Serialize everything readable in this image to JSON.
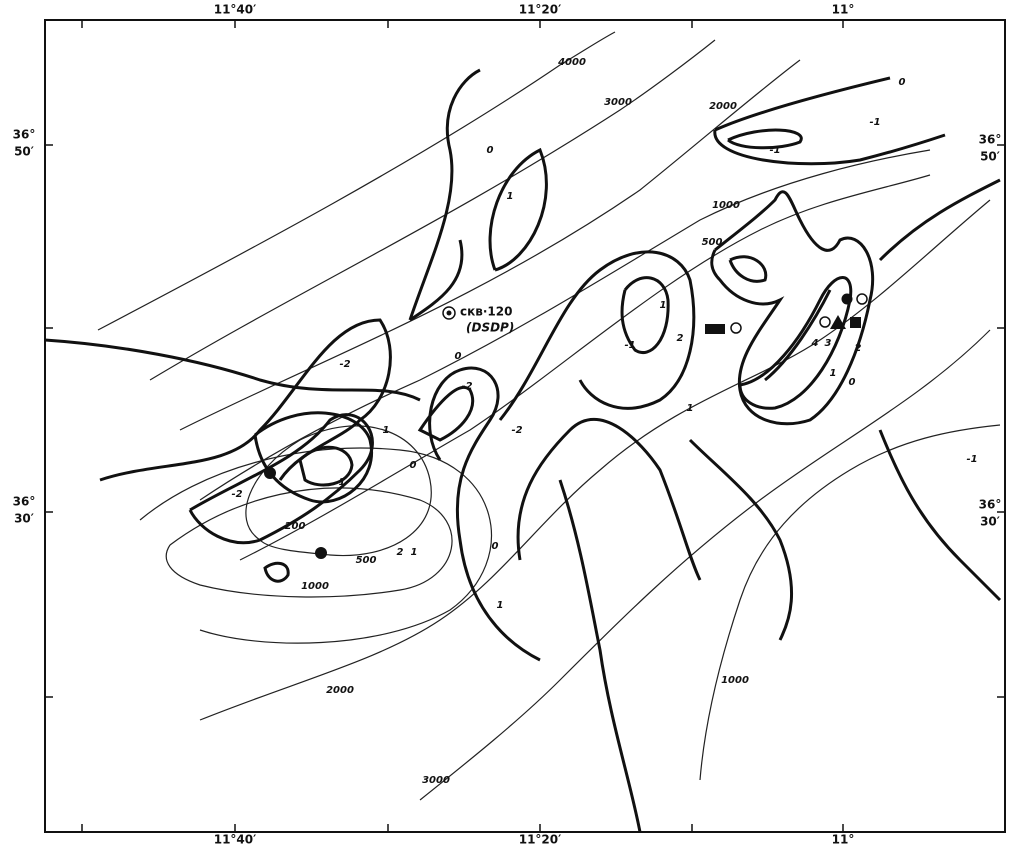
{
  "map": {
    "top_labels": [
      "11°40′",
      "11°20′",
      "11°"
    ],
    "bottom_labels": [
      "11°40′",
      "11°20′",
      "11°"
    ],
    "left_labels": [
      {
        "deg": "36°",
        "min": "50′"
      },
      {
        "deg": "36°",
        "min": "30′"
      }
    ],
    "right_labels": [
      {
        "deg": "36°",
        "min": "50′"
      },
      {
        "deg": "36°",
        "min": "30′"
      }
    ],
    "well": {
      "label": "скв·120",
      "source": "(DSDP)"
    },
    "contour_labels": [
      "4000",
      "3000",
      "2000",
      "1000",
      "500",
      "0",
      "0",
      "1",
      "-1",
      "-1",
      "-2",
      "-2",
      "-2",
      "-2",
      "0",
      "1",
      "0",
      "-1",
      "1",
      "0",
      "1",
      "-1",
      "2",
      "1",
      "200",
      "500",
      "1000",
      "2000",
      "3000",
      "1000",
      "-1",
      "1",
      "4",
      "3",
      "2",
      "1",
      "0",
      "2"
    ]
  }
}
